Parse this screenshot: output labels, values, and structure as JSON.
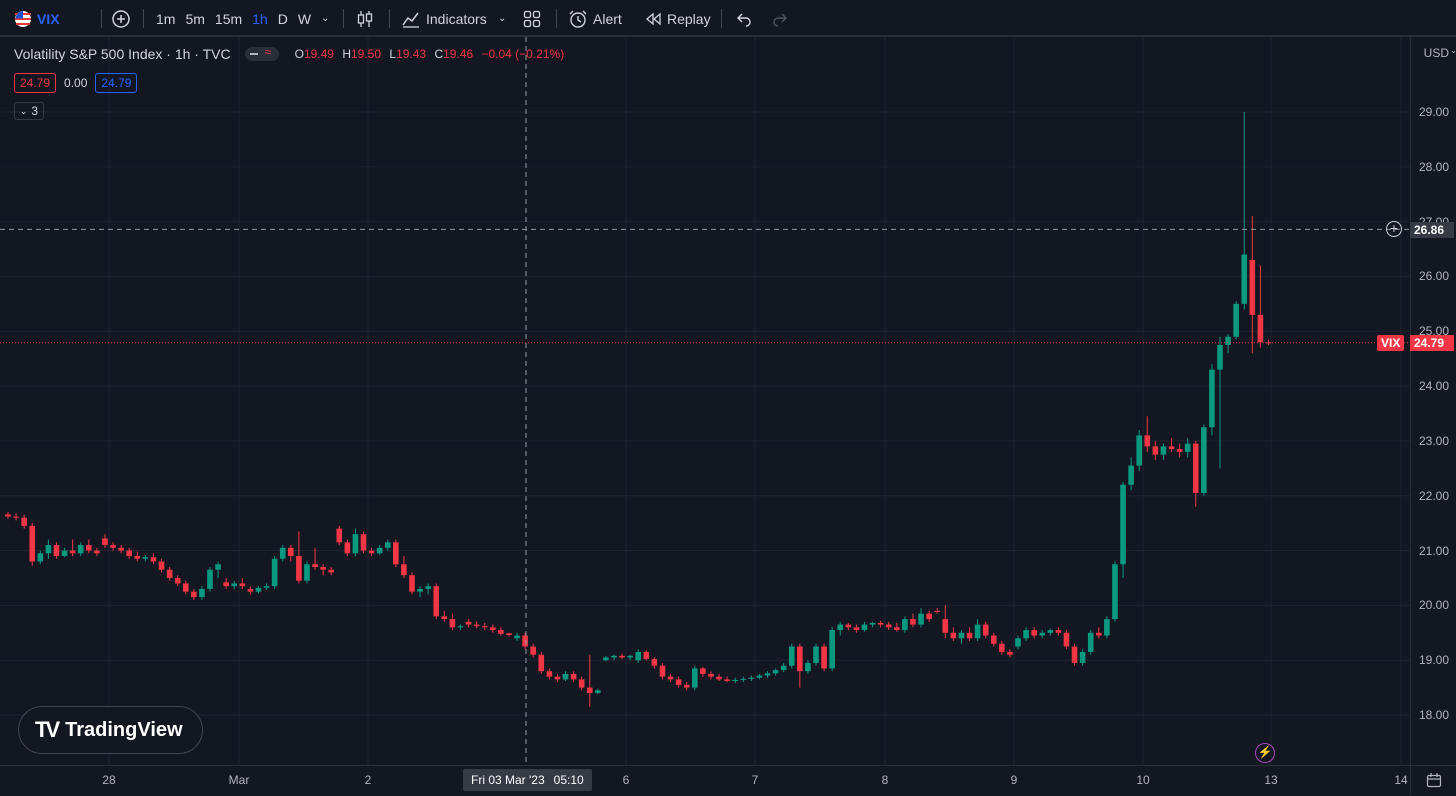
{
  "toolbar": {
    "symbol": "VIX",
    "intervals": [
      "1m",
      "5m",
      "15m",
      "1h",
      "D",
      "W"
    ],
    "active_interval": "1h",
    "indicators_label": "Indicators",
    "alert_label": "Alert",
    "replay_label": "Replay"
  },
  "legend": {
    "title": "Volatility S&P 500 Index · 1h · TVC",
    "o_key": "O",
    "o_val": "19.49",
    "h_key": "H",
    "h_val": "19.50",
    "l_key": "L",
    "l_val": "19.43",
    "c_key": "C",
    "c_val": "19.46",
    "change": "−0.04 (−0.21%)",
    "bid": "24.79",
    "spread": "0.00",
    "ask": "24.79",
    "indicator_count": "3"
  },
  "price_axis": {
    "currency": "USD",
    "ticks": [
      "29.00",
      "28.00",
      "27.00",
      "26.00",
      "25.00",
      "24.00",
      "23.00",
      "22.00",
      "21.00",
      "20.00",
      "19.00",
      "18.00"
    ],
    "crosshair_price": "26.86",
    "last_price": "24.79",
    "last_price_symbol": "VIX"
  },
  "time_axis": {
    "ticks": [
      "28",
      "Mar",
      "2",
      "6",
      "7",
      "8",
      "9",
      "10",
      "13",
      "14"
    ],
    "crosshair_date": "Fri 03 Mar '23",
    "crosshair_time": "05:10"
  },
  "brand": "TradingView",
  "colors": {
    "up": "#089981",
    "down": "#f23645",
    "accent": "#2962ff",
    "background": "#131722"
  },
  "chart_data": {
    "type": "candlestick",
    "interval": "1h",
    "price_range": [
      17.6,
      29.9
    ],
    "ohlc": [
      [
        21.66,
        21.7,
        21.58,
        21.62
      ],
      [
        21.62,
        21.68,
        21.55,
        21.6
      ],
      [
        21.6,
        21.65,
        21.4,
        21.45
      ],
      [
        21.45,
        21.5,
        20.72,
        20.8
      ],
      [
        20.8,
        21.0,
        20.75,
        20.95
      ],
      [
        20.95,
        21.2,
        20.85,
        21.1
      ],
      [
        21.1,
        21.15,
        20.85,
        20.9
      ],
      [
        20.9,
        21.05,
        20.88,
        21.0
      ],
      [
        21.0,
        21.2,
        20.9,
        20.95
      ],
      [
        20.95,
        21.15,
        20.9,
        21.1
      ],
      [
        21.1,
        21.2,
        20.95,
        21.0
      ],
      [
        21.0,
        21.05,
        20.9,
        20.95
      ],
      [
        21.22,
        21.3,
        21.05,
        21.1
      ],
      [
        21.1,
        21.15,
        21.0,
        21.05
      ],
      [
        21.05,
        21.1,
        20.95,
        21.0
      ],
      [
        21.0,
        21.05,
        20.85,
        20.9
      ],
      [
        20.9,
        20.98,
        20.8,
        20.85
      ],
      [
        20.85,
        20.92,
        20.8,
        20.88
      ],
      [
        20.88,
        20.95,
        20.75,
        20.8
      ],
      [
        20.8,
        20.85,
        20.6,
        20.65
      ],
      [
        20.65,
        20.7,
        20.45,
        20.5
      ],
      [
        20.5,
        20.55,
        20.35,
        20.4
      ],
      [
        20.4,
        20.45,
        20.2,
        20.25
      ],
      [
        20.25,
        20.3,
        20.1,
        20.15
      ],
      [
        20.15,
        20.35,
        20.1,
        20.3
      ],
      [
        20.3,
        20.7,
        20.25,
        20.65
      ],
      [
        20.65,
        20.8,
        20.5,
        20.75
      ],
      [
        20.42,
        20.5,
        20.3,
        20.35
      ],
      [
        20.35,
        20.45,
        20.3,
        20.4
      ],
      [
        20.4,
        20.5,
        20.3,
        20.35
      ],
      [
        20.3,
        20.35,
        20.2,
        20.25
      ],
      [
        20.25,
        20.35,
        20.22,
        20.32
      ],
      [
        20.32,
        20.4,
        20.28,
        20.35
      ],
      [
        20.35,
        20.9,
        20.3,
        20.85
      ],
      [
        20.85,
        21.1,
        20.8,
        21.05
      ],
      [
        21.05,
        21.1,
        20.8,
        20.9
      ],
      [
        20.9,
        21.35,
        20.4,
        20.45
      ],
      [
        20.45,
        20.8,
        20.4,
        20.75
      ],
      [
        20.75,
        21.05,
        20.65,
        20.7
      ],
      [
        20.7,
        20.75,
        20.55,
        20.65
      ],
      [
        20.65,
        20.7,
        20.55,
        20.6
      ],
      [
        21.4,
        21.45,
        21.1,
        21.15
      ],
      [
        21.15,
        21.2,
        20.9,
        20.95
      ],
      [
        20.95,
        21.4,
        20.9,
        21.3
      ],
      [
        21.3,
        21.35,
        20.95,
        21.0
      ],
      [
        21.0,
        21.05,
        20.9,
        20.95
      ],
      [
        20.95,
        21.1,
        20.92,
        21.05
      ],
      [
        21.05,
        21.2,
        21.0,
        21.15
      ],
      [
        21.15,
        21.2,
        20.7,
        20.75
      ],
      [
        20.75,
        20.9,
        20.5,
        20.55
      ],
      [
        20.55,
        20.6,
        20.2,
        20.25
      ],
      [
        20.25,
        20.35,
        20.15,
        20.3
      ],
      [
        20.3,
        20.4,
        20.2,
        20.35
      ],
      [
        20.35,
        20.4,
        19.75,
        19.8
      ],
      [
        19.8,
        19.9,
        19.7,
        19.75
      ],
      [
        19.75,
        19.85,
        19.55,
        19.6
      ],
      [
        19.6,
        19.65,
        19.55,
        19.62
      ],
      [
        19.7,
        19.75,
        19.6,
        19.65
      ],
      [
        19.65,
        19.7,
        19.58,
        19.62
      ],
      [
        19.62,
        19.68,
        19.55,
        19.6
      ],
      [
        19.6,
        19.65,
        19.5,
        19.55
      ],
      [
        19.55,
        19.6,
        19.45,
        19.48
      ],
      [
        19.49,
        19.5,
        19.43,
        19.46
      ],
      [
        19.4,
        19.5,
        19.35,
        19.45
      ],
      [
        19.45,
        19.5,
        19.2,
        19.25
      ],
      [
        19.25,
        19.3,
        19.05,
        19.1
      ],
      [
        19.1,
        19.15,
        18.75,
        18.8
      ],
      [
        18.8,
        18.85,
        18.65,
        18.7
      ],
      [
        18.7,
        18.75,
        18.6,
        18.65
      ],
      [
        18.65,
        18.8,
        18.62,
        18.75
      ],
      [
        18.75,
        18.8,
        18.6,
        18.65
      ],
      [
        18.65,
        18.7,
        18.45,
        18.5
      ],
      [
        18.5,
        19.1,
        18.15,
        18.4
      ],
      [
        18.4,
        18.48,
        18.38,
        18.45
      ],
      [
        19.0,
        19.08,
        18.98,
        19.05
      ],
      [
        19.05,
        19.1,
        19.0,
        19.08
      ],
      [
        19.08,
        19.12,
        19.02,
        19.05
      ],
      [
        19.05,
        19.1,
        19.0,
        19.08
      ],
      [
        19.0,
        19.2,
        18.95,
        19.15
      ],
      [
        19.15,
        19.18,
        19.0,
        19.02
      ],
      [
        19.02,
        19.05,
        18.85,
        18.9
      ],
      [
        18.9,
        18.95,
        18.65,
        18.7
      ],
      [
        18.7,
        18.75,
        18.6,
        18.65
      ],
      [
        18.65,
        18.7,
        18.5,
        18.55
      ],
      [
        18.55,
        18.6,
        18.45,
        18.5
      ],
      [
        18.5,
        18.9,
        18.45,
        18.85
      ],
      [
        18.85,
        18.88,
        18.7,
        18.75
      ],
      [
        18.75,
        18.8,
        18.65,
        18.7
      ],
      [
        18.7,
        18.75,
        18.62,
        18.65
      ],
      [
        18.65,
        18.7,
        18.6,
        18.62
      ],
      [
        18.62,
        18.68,
        18.58,
        18.64
      ],
      [
        18.64,
        18.7,
        18.6,
        18.66
      ],
      [
        18.66,
        18.72,
        18.62,
        18.68
      ],
      [
        18.68,
        18.75,
        18.65,
        18.72
      ],
      [
        18.72,
        18.8,
        18.68,
        18.76
      ],
      [
        18.76,
        18.85,
        18.72,
        18.82
      ],
      [
        18.82,
        18.95,
        18.78,
        18.9
      ],
      [
        18.9,
        19.3,
        18.85,
        19.25
      ],
      [
        19.25,
        19.3,
        18.5,
        18.8
      ],
      [
        18.8,
        19.0,
        18.75,
        18.95
      ],
      [
        18.95,
        19.3,
        18.9,
        19.25
      ],
      [
        19.25,
        19.3,
        18.8,
        18.85
      ],
      [
        18.85,
        19.6,
        18.8,
        19.55
      ],
      [
        19.55,
        19.7,
        19.45,
        19.65
      ],
      [
        19.65,
        19.68,
        19.55,
        19.6
      ],
      [
        19.6,
        19.65,
        19.5,
        19.55
      ],
      [
        19.55,
        19.7,
        19.52,
        19.65
      ],
      [
        19.65,
        19.7,
        19.6,
        19.68
      ],
      [
        19.68,
        19.72,
        19.6,
        19.65
      ],
      [
        19.65,
        19.7,
        19.55,
        19.6
      ],
      [
        19.6,
        19.68,
        19.52,
        19.55
      ],
      [
        19.55,
        19.8,
        19.5,
        19.75
      ],
      [
        19.75,
        19.85,
        19.6,
        19.65
      ],
      [
        19.65,
        19.95,
        19.6,
        19.85
      ],
      [
        19.85,
        19.9,
        19.7,
        19.75
      ],
      [
        19.9,
        19.95,
        19.85,
        19.88
      ],
      [
        19.75,
        20.0,
        19.4,
        19.5
      ],
      [
        19.5,
        19.6,
        19.35,
        19.4
      ],
      [
        19.4,
        19.55,
        19.3,
        19.5
      ],
      [
        19.5,
        19.6,
        19.35,
        19.4
      ],
      [
        19.4,
        19.75,
        19.35,
        19.65
      ],
      [
        19.65,
        19.7,
        19.4,
        19.45
      ],
      [
        19.45,
        19.5,
        19.25,
        19.3
      ],
      [
        19.3,
        19.35,
        19.1,
        19.15
      ],
      [
        19.15,
        19.2,
        19.05,
        19.1
      ],
      [
        19.25,
        19.45,
        19.2,
        19.4
      ],
      [
        19.4,
        19.6,
        19.35,
        19.55
      ],
      [
        19.55,
        19.6,
        19.4,
        19.45
      ],
      [
        19.45,
        19.55,
        19.4,
        19.5
      ],
      [
        19.5,
        19.58,
        19.45,
        19.55
      ],
      [
        19.55,
        19.6,
        19.45,
        19.5
      ],
      [
        19.5,
        19.55,
        19.2,
        19.25
      ],
      [
        19.25,
        19.3,
        18.9,
        18.95
      ],
      [
        18.95,
        19.2,
        18.9,
        19.15
      ],
      [
        19.15,
        19.55,
        19.1,
        19.5
      ],
      [
        19.5,
        19.6,
        19.4,
        19.45
      ],
      [
        19.45,
        19.8,
        19.4,
        19.75
      ],
      [
        19.75,
        20.8,
        19.7,
        20.75
      ],
      [
        20.75,
        22.25,
        20.5,
        22.2
      ],
      [
        22.2,
        22.7,
        22.1,
        22.55
      ],
      [
        22.55,
        23.2,
        22.45,
        23.1
      ],
      [
        23.1,
        23.45,
        22.8,
        22.9
      ],
      [
        22.9,
        23.0,
        22.65,
        22.75
      ],
      [
        22.75,
        22.95,
        22.65,
        22.9
      ],
      [
        22.9,
        23.05,
        22.8,
        22.85
      ],
      [
        22.85,
        22.95,
        22.7,
        22.8
      ],
      [
        22.8,
        23.05,
        22.7,
        22.95
      ],
      [
        22.95,
        23.0,
        21.8,
        22.05
      ],
      [
        22.05,
        23.3,
        22.0,
        23.25
      ],
      [
        23.25,
        24.4,
        23.1,
        24.3
      ],
      [
        24.3,
        24.9,
        22.5,
        24.75
      ],
      [
        24.75,
        24.95,
        24.6,
        24.9
      ],
      [
        24.9,
        25.55,
        24.85,
        25.5
      ],
      [
        25.5,
        29.0,
        25.4,
        26.4
      ],
      [
        26.3,
        27.1,
        24.6,
        25.3
      ],
      [
        25.3,
        26.2,
        24.7,
        24.8
      ],
      [
        24.8,
        24.85,
        24.75,
        24.79
      ]
    ]
  }
}
